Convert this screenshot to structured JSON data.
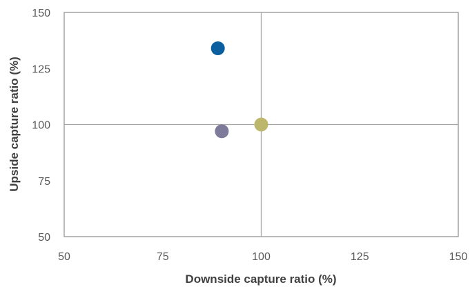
{
  "chart_data": {
    "type": "scatter",
    "xlabel": "Downside capture ratio  (%)",
    "ylabel": "Upside capture ratio  (%)",
    "xlim": [
      50,
      150
    ],
    "ylim": [
      50,
      150
    ],
    "x_ticks": [
      50,
      75,
      100,
      125,
      150
    ],
    "y_ticks": [
      50,
      75,
      100,
      125,
      150
    ],
    "reference_lines": {
      "x": 100,
      "y": 100
    },
    "grid": false,
    "points": [
      {
        "x": 89,
        "y": 134,
        "color": "#0b5f9e"
      },
      {
        "x": 90,
        "y": 97,
        "color": "#7d7a9a"
      },
      {
        "x": 100,
        "y": 100,
        "color": "#bdb76b"
      }
    ]
  }
}
